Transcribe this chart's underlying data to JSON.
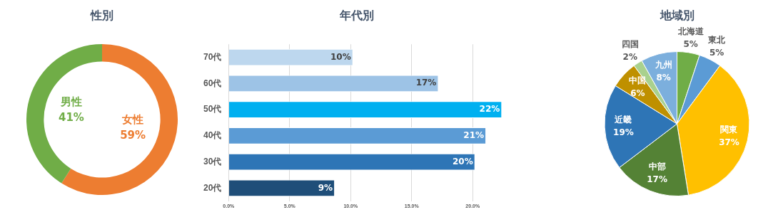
{
  "chart_data": [
    {
      "type": "donut",
      "title": "性別",
      "categories": [
        "女性",
        "男性"
      ],
      "values": [
        59,
        41
      ],
      "colors": [
        "#ed7d31",
        "#70ad47"
      ],
      "value_labels": [
        "59%",
        "41%"
      ]
    },
    {
      "type": "bar",
      "title": "年代別",
      "orientation": "horizontal",
      "categories": [
        "70代",
        "60代",
        "50代",
        "40代",
        "30代",
        "20代"
      ],
      "values": [
        10.2,
        17.2,
        22.4,
        21.1,
        20.2,
        8.7
      ],
      "colors": [
        "#bdd7ee",
        "#9dc3e6",
        "#00b0f0",
        "#5b9bd5",
        "#2e75b6",
        "#1f4e79"
      ],
      "value_labels": [
        "10%",
        "17%",
        "22%",
        "21%",
        "20%",
        "9%"
      ],
      "xlim": [
        0,
        22.5
      ],
      "xticks": [
        {
          "value": 0,
          "label": "0.0%"
        },
        {
          "value": 5,
          "label": "5.0%"
        },
        {
          "value": 10,
          "label": "10.0%"
        },
        {
          "value": 15,
          "label": "15.0%"
        },
        {
          "value": 20,
          "label": "20.0%"
        }
      ],
      "grid": "x"
    },
    {
      "type": "pie",
      "title": "地域別",
      "categories": [
        "北海道",
        "東北",
        "関東",
        "中部",
        "近畿",
        "中国",
        "四国",
        "九州"
      ],
      "values": [
        5,
        5,
        37,
        17,
        19,
        6,
        2,
        8
      ],
      "colors": [
        "#70ad47",
        "#5b9bd5",
        "#ffc000",
        "#548235",
        "#2e75b6",
        "#bf9000",
        "#a9d18e",
        "#7cafdd"
      ],
      "value_labels": [
        "5%",
        "5%",
        "37%",
        "17%",
        "19%",
        "6%",
        "2%",
        "8%"
      ]
    }
  ]
}
